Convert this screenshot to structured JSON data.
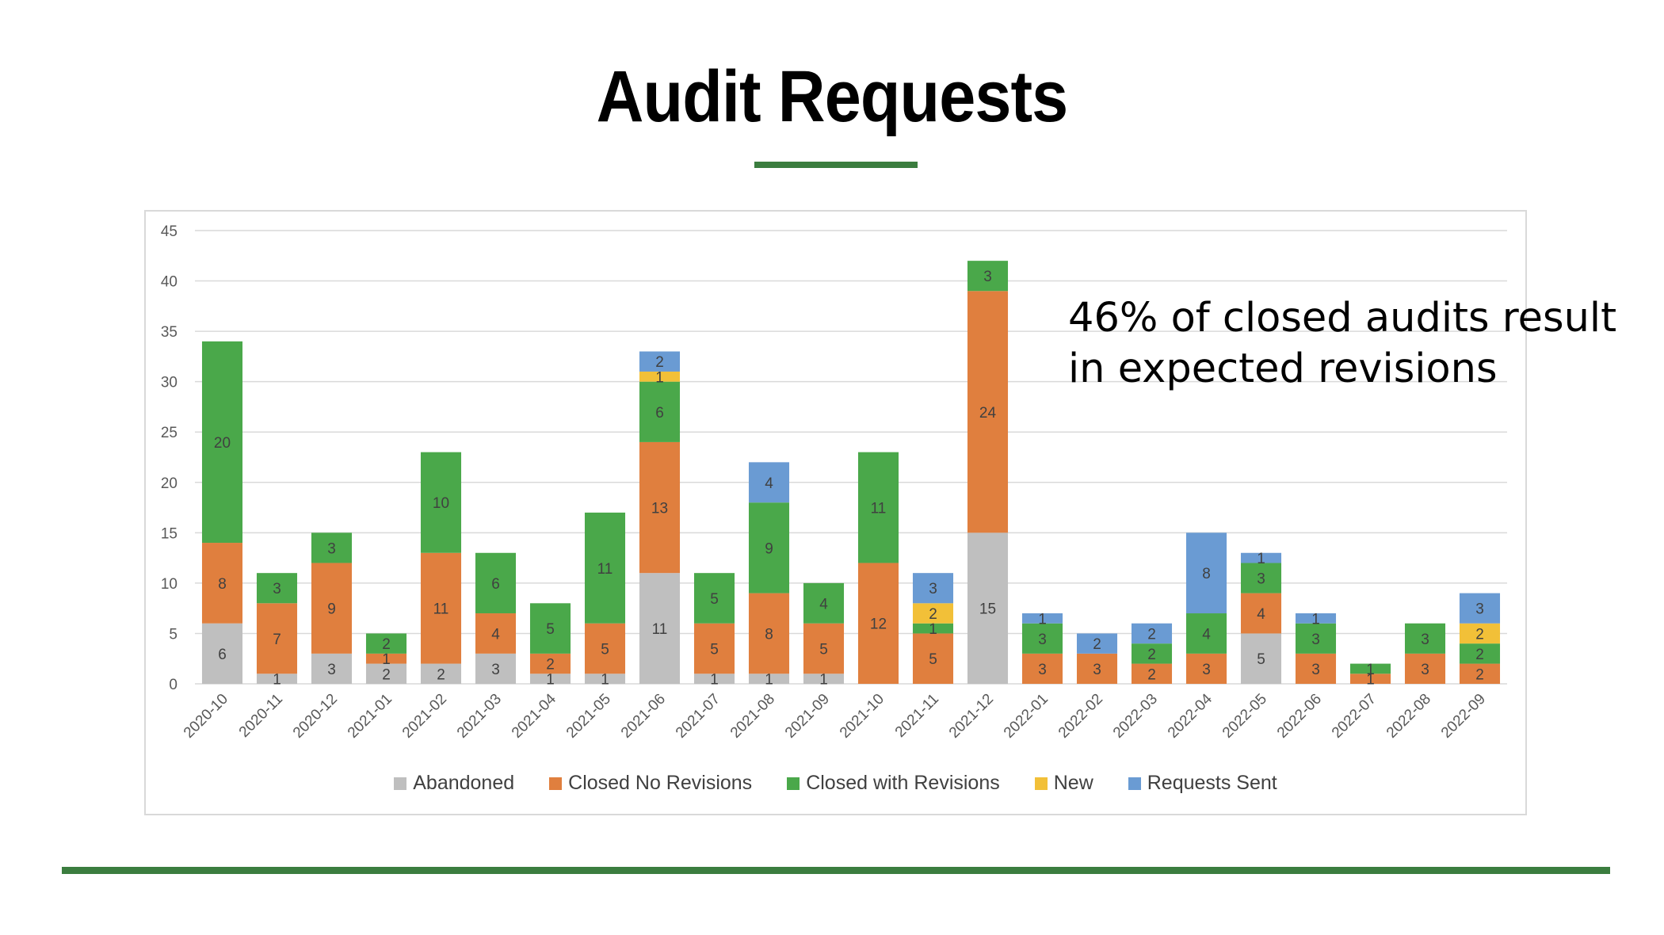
{
  "slide": {
    "title": "Audit Requests",
    "annotation_line1": "46% of closed audits result",
    "annotation_line2": "in expected revisions"
  },
  "colors": {
    "accent": "#3b7d3f",
    "gridline": "#d9d9d9",
    "axis_text": "#595959",
    "label_text": "#404040"
  },
  "chart_data": {
    "type": "bar",
    "stacked": true,
    "ylim": [
      0,
      45
    ],
    "yticks": [
      0,
      5,
      10,
      15,
      20,
      25,
      30,
      35,
      40,
      45
    ],
    "grid": true,
    "legend_position": "bottom",
    "categories": [
      "2020-10",
      "2020-11",
      "2020-12",
      "2021-01",
      "2021-02",
      "2021-03",
      "2021-04",
      "2021-05",
      "2021-06",
      "2021-07",
      "2021-08",
      "2021-09",
      "2021-10",
      "2021-11",
      "2021-12",
      "2022-01",
      "2022-02",
      "2022-03",
      "2022-04",
      "2022-05",
      "2022-06",
      "2022-07",
      "2022-08",
      "2022-09"
    ],
    "series": [
      {
        "name": "Abandoned",
        "color": "#bfbfbf",
        "values": [
          6,
          1,
          3,
          2,
          2,
          3,
          1,
          1,
          11,
          1,
          1,
          1,
          0,
          0,
          15,
          0,
          0,
          0,
          0,
          5,
          0,
          0,
          0,
          0
        ]
      },
      {
        "name": "Closed No Revisions",
        "color": "#e07f3e",
        "values": [
          8,
          7,
          9,
          1,
          11,
          4,
          2,
          5,
          13,
          5,
          8,
          5,
          12,
          5,
          24,
          3,
          3,
          2,
          3,
          4,
          3,
          1,
          3,
          2
        ]
      },
      {
        "name": "Closed with Revisions",
        "color": "#4aa84a",
        "values": [
          20,
          3,
          3,
          2,
          10,
          6,
          5,
          11,
          6,
          5,
          9,
          4,
          11,
          1,
          3,
          3,
          0,
          2,
          4,
          3,
          3,
          1,
          3,
          2
        ]
      },
      {
        "name": "New",
        "color": "#f2c038",
        "values": [
          0,
          0,
          0,
          0,
          0,
          0,
          0,
          0,
          1,
          0,
          0,
          0,
          0,
          2,
          0,
          0,
          0,
          0,
          0,
          0,
          0,
          0,
          0,
          2
        ]
      },
      {
        "name": "Requests Sent",
        "color": "#6a9bd3",
        "values": [
          0,
          0,
          0,
          0,
          0,
          0,
          0,
          0,
          2,
          0,
          4,
          0,
          0,
          3,
          0,
          1,
          2,
          2,
          8,
          1,
          1,
          0,
          0,
          3
        ]
      }
    ]
  }
}
